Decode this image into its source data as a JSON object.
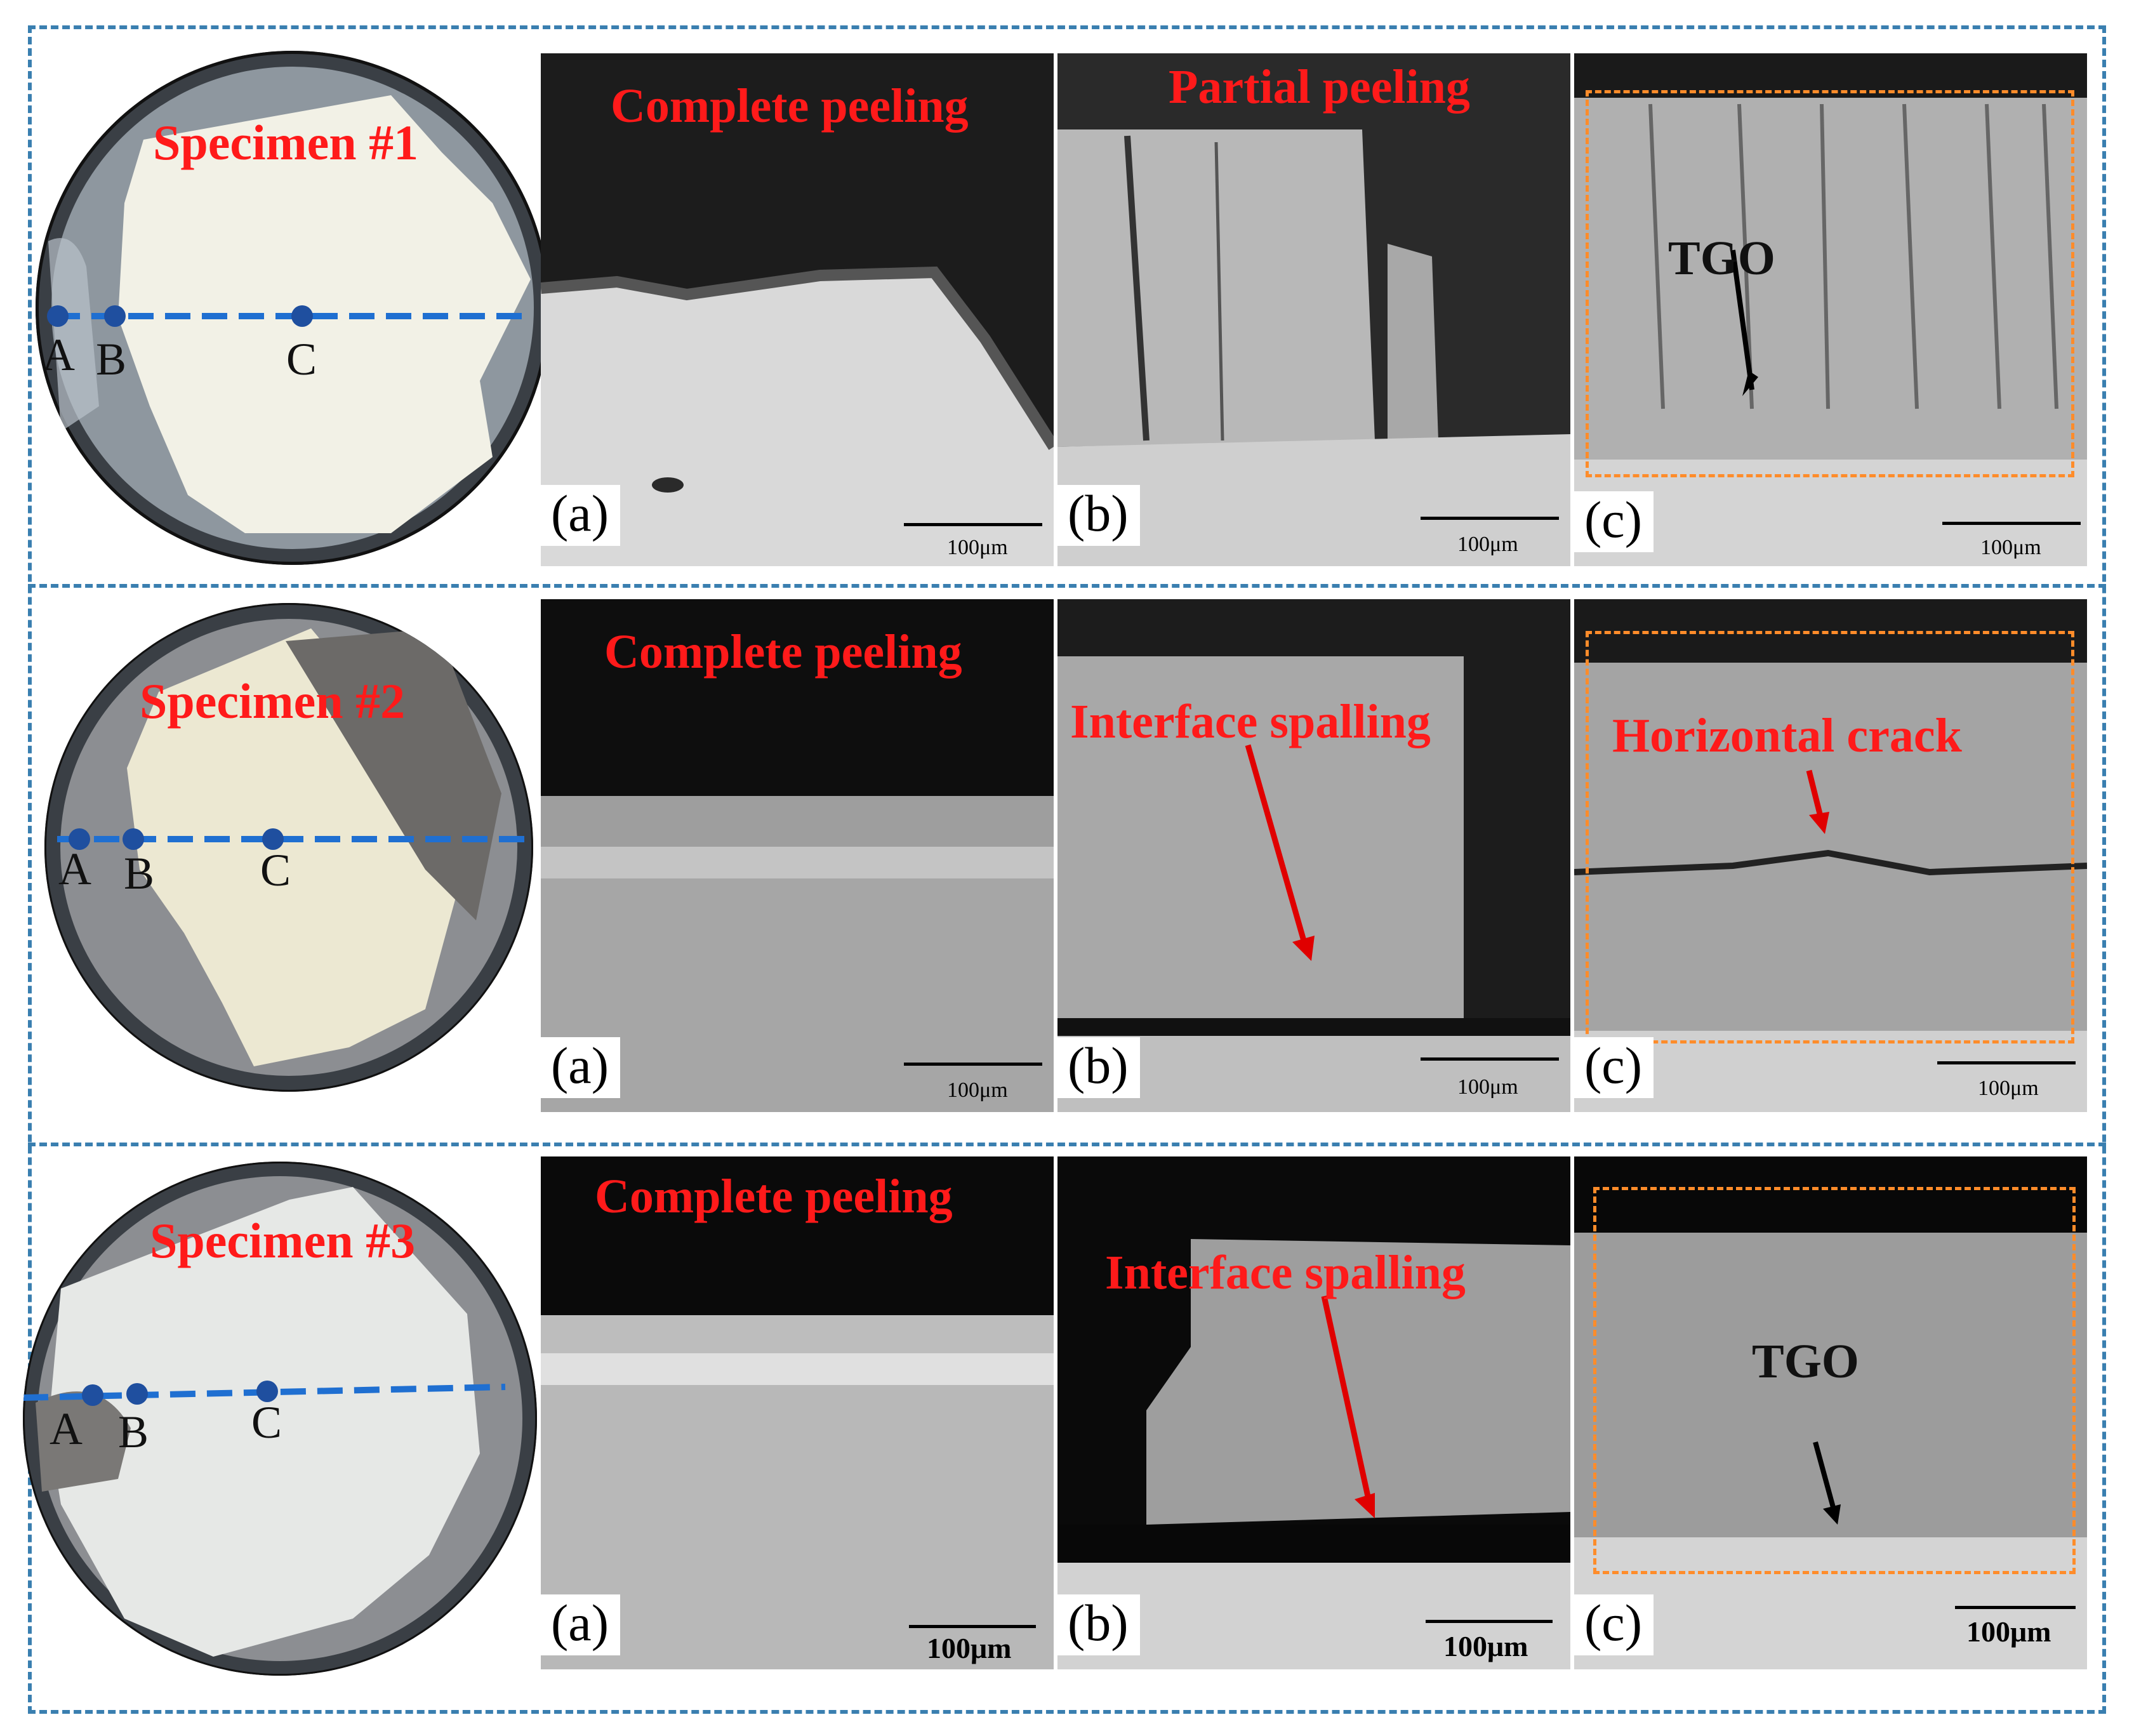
{
  "specimens": [
    {
      "label": "Specimen #1",
      "points": [
        "A",
        "B",
        "C"
      ],
      "panels": [
        {
          "sublabel": "(a)",
          "annotation": "Complete peeling",
          "scale": "100μm"
        },
        {
          "sublabel": "(b)",
          "annotation": "Partial peeling",
          "scale": "100μm"
        },
        {
          "sublabel": "(c)",
          "annotation": "TGO",
          "scale": "100μm"
        }
      ]
    },
    {
      "label": "Specimen #2",
      "points": [
        "A",
        "B",
        "C"
      ],
      "panels": [
        {
          "sublabel": "(a)",
          "annotation": "Complete peeling",
          "scale": "100μm"
        },
        {
          "sublabel": "(b)",
          "annotation": "Interface spalling",
          "scale": "100μm"
        },
        {
          "sublabel": "(c)",
          "annotation": "Horizontal crack",
          "scale": "100μm"
        }
      ]
    },
    {
      "label": "Specimen #3",
      "points": [
        "A",
        "B",
        "C"
      ],
      "panels": [
        {
          "sublabel": "(a)",
          "annotation": "Complete peeling",
          "scale": "100μm"
        },
        {
          "sublabel": "(b)",
          "annotation": "Interface spalling",
          "scale": "100μm"
        },
        {
          "sublabel": "(c)",
          "annotation": "TGO",
          "scale": "100μm"
        }
      ]
    }
  ],
  "colors": {
    "frame": "#3a7fb0",
    "annotation": "#ff1a1a",
    "roi_box": "#ff8c2a",
    "line_marker": "#1f6fd1"
  }
}
